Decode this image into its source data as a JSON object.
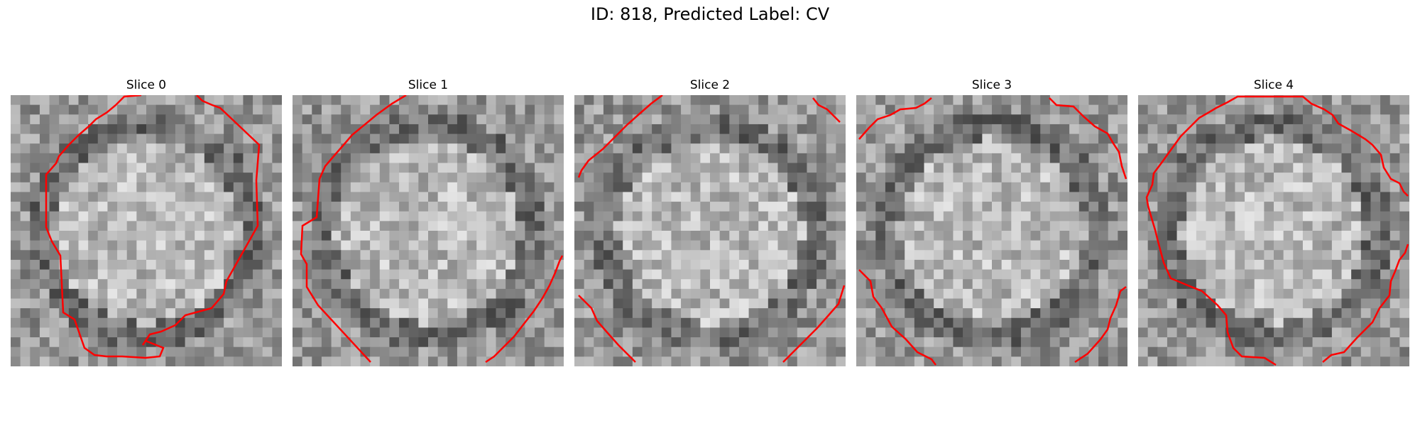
{
  "figure": {
    "title": "ID: 818, Predicted Label: CV",
    "contour_color": "#ff0000",
    "slices": [
      {
        "title": "Slice 0"
      },
      {
        "title": "Slice 1"
      },
      {
        "title": "Slice 2"
      },
      {
        "title": "Slice 3"
      },
      {
        "title": "Slice 4"
      }
    ]
  }
}
